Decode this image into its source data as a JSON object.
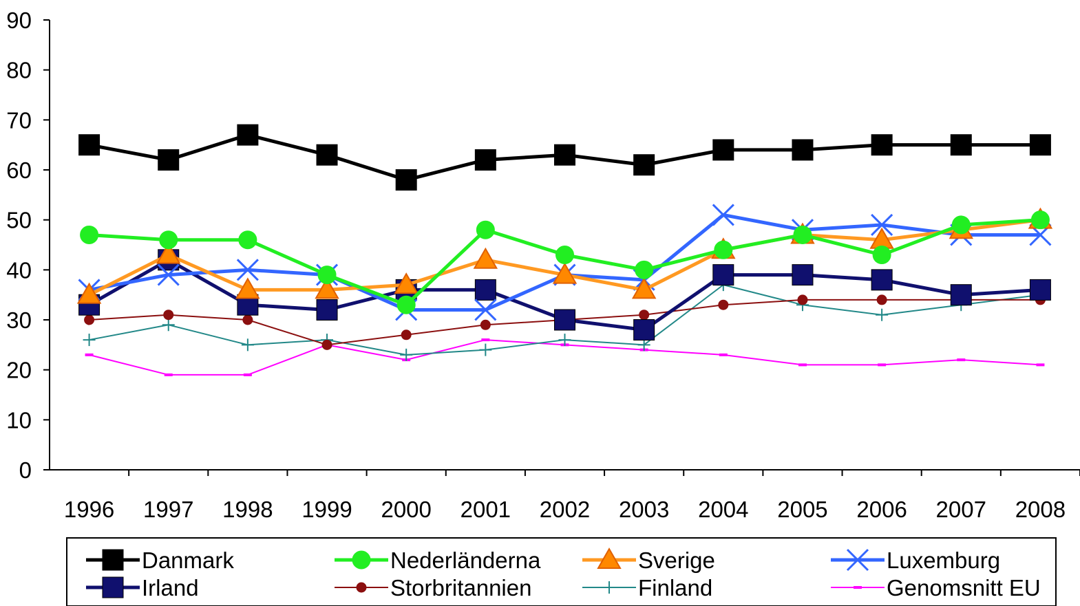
{
  "chart_data": {
    "type": "line",
    "title": "",
    "xlabel": "",
    "ylabel": "",
    "x": [
      "1996",
      "1997",
      "1998",
      "1999",
      "2000",
      "2001",
      "2002",
      "2003",
      "2004",
      "2005",
      "2006",
      "2007",
      "2008"
    ],
    "ylim": [
      0,
      90
    ],
    "yticks": [
      "0",
      "10",
      "20",
      "30",
      "40",
      "50",
      "60",
      "70",
      "80",
      "90"
    ],
    "grid": false,
    "legend_placement": "bottom",
    "series": [
      {
        "name": "Danmark",
        "color": "#000000",
        "marker": "square",
        "values": [
          65,
          62,
          67,
          63,
          58,
          62,
          63,
          61,
          64,
          64,
          65,
          65,
          65
        ]
      },
      {
        "name": "Nederländerna",
        "color": "#22EE22",
        "marker": "circle",
        "values": [
          47,
          46,
          46,
          39,
          33,
          48,
          43,
          40,
          44,
          47,
          43,
          49,
          50
        ]
      },
      {
        "name": "Sverige",
        "color": "#FF9922",
        "marker": "triangle",
        "values": [
          35,
          43,
          36,
          36,
          37,
          42,
          39,
          36,
          44,
          47,
          46,
          48,
          50
        ]
      },
      {
        "name": "Luxemburg",
        "color": "#3366FF",
        "marker": "x",
        "values": [
          36,
          39,
          40,
          39,
          32,
          32,
          39,
          38,
          51,
          48,
          49,
          47,
          47
        ]
      },
      {
        "name": "Irland",
        "color": "#10106E",
        "marker": "square",
        "values": [
          33,
          42,
          33,
          32,
          36,
          36,
          30,
          28,
          39,
          39,
          38,
          35,
          36
        ]
      },
      {
        "name": "Storbritannien",
        "color": "#8B0F0F",
        "marker": "dot",
        "values": [
          30,
          31,
          30,
          25,
          27,
          29,
          30,
          31,
          33,
          34,
          34,
          34,
          34
        ]
      },
      {
        "name": "Finland",
        "color": "#228888",
        "marker": "plus",
        "values": [
          26,
          29,
          25,
          26,
          23,
          24,
          26,
          25,
          37,
          33,
          31,
          33,
          35
        ]
      },
      {
        "name": "Genomsnitt EU",
        "color": "#FF00FF",
        "marker": "dash",
        "values": [
          23,
          19,
          19,
          25,
          22,
          26,
          25,
          24,
          23,
          21,
          21,
          22,
          21
        ]
      }
    ]
  }
}
